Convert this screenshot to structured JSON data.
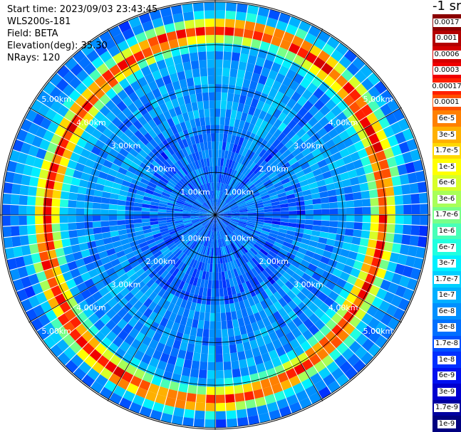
{
  "header": {
    "start_time": "Start time: 2023/09/03 23:43:45",
    "instrument": "WLS200s-181",
    "field": "Field: BETA",
    "elevation": "Elevation(deg): 35.30",
    "nrays": "NRays: 120"
  },
  "colorbar": {
    "unit": "-1 sr",
    "levels": [
      {
        "label": "0.0017",
        "color": "#8b0000"
      },
      {
        "label": "0.001",
        "color": "#b30000"
      },
      {
        "label": "0.0006",
        "color": "#d40000"
      },
      {
        "label": "0.0003",
        "color": "#f00000"
      },
      {
        "label": "0.00017",
        "color": "#ff2000"
      },
      {
        "label": "0.0001",
        "color": "#ff5000"
      },
      {
        "label": "6e-5",
        "color": "#ff8000"
      },
      {
        "label": "3e-5",
        "color": "#ffb000"
      },
      {
        "label": "1.7e-5",
        "color": "#ffd800"
      },
      {
        "label": "1e-5",
        "color": "#ffff00"
      },
      {
        "label": "6e-6",
        "color": "#d8ff28"
      },
      {
        "label": "3e-6",
        "color": "#a8ff58"
      },
      {
        "label": "1.7e-6",
        "color": "#78ff88"
      },
      {
        "label": "1e-6",
        "color": "#48ffb8"
      },
      {
        "label": "6e-7",
        "color": "#20ffe0"
      },
      {
        "label": "3e-7",
        "color": "#00f0ff"
      },
      {
        "label": "1.7e-7",
        "color": "#00d0ff"
      },
      {
        "label": "1e-7",
        "color": "#00b0ff"
      },
      {
        "label": "6e-8",
        "color": "#0090ff"
      },
      {
        "label": "3e-8",
        "color": "#0070ff"
      },
      {
        "label": "1.7e-8",
        "color": "#0050ff"
      },
      {
        "label": "1e-8",
        "color": "#0030ff"
      },
      {
        "label": "6e-9",
        "color": "#0010f0"
      },
      {
        "label": "3e-9",
        "color": "#0000d0"
      },
      {
        "label": "1.7e-9",
        "color": "#0000a0"
      },
      {
        "label": "1e-9",
        "color": "#000080"
      }
    ]
  },
  "chart_data": {
    "type": "heatmap",
    "projection": "polar (PPI)",
    "field": "BETA",
    "scale": "log",
    "range_rings_km": [
      "1.00km",
      "2.00km",
      "3.00km",
      "4.00km",
      "5.00km"
    ],
    "nrays": 120,
    "max_range_km": 5.0,
    "feature": {
      "description_values": "backscatter ring maximum",
      "ring_center_range_km": 4.15,
      "peak_level_label": "0.0001",
      "background_level_label": "1e-8"
    }
  }
}
